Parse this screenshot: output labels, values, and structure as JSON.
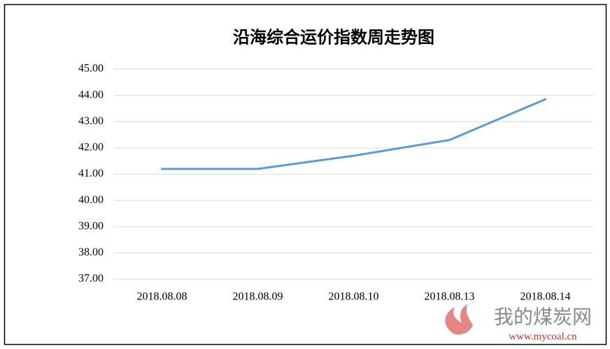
{
  "chart_data": {
    "type": "line",
    "title": "沿海综合运价指数周走势图",
    "categories": [
      "2018.08.08",
      "2018.08.09",
      "2018.08.10",
      "2018.08.13",
      "2018.08.14"
    ],
    "series": [
      {
        "color": "#5b9bd5",
        "values": [
          41.2,
          41.2,
          41.7,
          42.3,
          43.85
        ]
      }
    ],
    "ylim": [
      37,
      45
    ],
    "yticks": [
      {
        "value": 37,
        "label": "37.00"
      },
      {
        "value": 38,
        "label": "38.00"
      },
      {
        "value": 39,
        "label": "39.00"
      },
      {
        "value": 40,
        "label": "40.00"
      },
      {
        "value": 41,
        "label": "41.00"
      },
      {
        "value": 42,
        "label": "42.00"
      },
      {
        "value": 43,
        "label": "43.00"
      },
      {
        "value": 44,
        "label": "44.00"
      },
      {
        "value": 45,
        "label": "45.00"
      }
    ],
    "grid": true
  },
  "watermark": {
    "name": "我的煤炭网",
    "url": "www.mycoal.cn"
  }
}
